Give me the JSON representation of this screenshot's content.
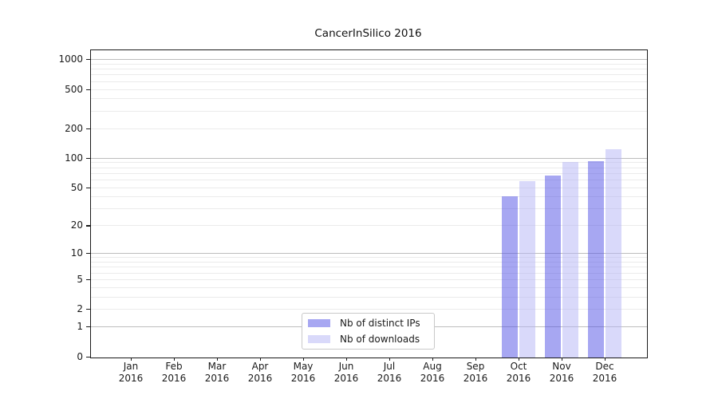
{
  "title": "CancerInSilico 2016",
  "chart_data": {
    "type": "bar",
    "title": "CancerInSilico 2016",
    "x_categories": [
      {
        "month": "Jan",
        "year": "2016"
      },
      {
        "month": "Feb",
        "year": "2016"
      },
      {
        "month": "Mar",
        "year": "2016"
      },
      {
        "month": "Apr",
        "year": "2016"
      },
      {
        "month": "May",
        "year": "2016"
      },
      {
        "month": "Jun",
        "year": "2016"
      },
      {
        "month": "Jul",
        "year": "2016"
      },
      {
        "month": "Aug",
        "year": "2016"
      },
      {
        "month": "Sep",
        "year": "2016"
      },
      {
        "month": "Oct",
        "year": "2016"
      },
      {
        "month": "Nov",
        "year": "2016"
      },
      {
        "month": "Dec",
        "year": "2016"
      }
    ],
    "series": [
      {
        "name": "Nb of distinct IPs",
        "color": "#5050e6",
        "values": [
          0,
          0,
          0,
          0,
          0,
          0,
          0,
          0,
          0,
          40,
          66,
          92
        ]
      },
      {
        "name": "Nb of downloads",
        "color": "#b4b4f5",
        "values": [
          0,
          0,
          0,
          0,
          0,
          0,
          0,
          0,
          0,
          58,
          90,
          122
        ]
      }
    ],
    "y_ticks": [
      0,
      1,
      2,
      5,
      10,
      20,
      50,
      100,
      200,
      500,
      1000
    ],
    "y_scale": "log1p",
    "ylim": [
      0,
      1230
    ],
    "grid": "horizontal, major and minor",
    "legend_position": "lower center inside axes"
  },
  "colors": {
    "ips_bar_base": "#5050e6",
    "downloads_bar_base": "#b4b4f5",
    "ips_bar_rendered": "#a7a7f2",
    "downloads_bar_rendered": "#d9d9fa",
    "major_gridline": "#bdbdbd",
    "minor_gridline": "#ebebeb",
    "axis_spine": "#1a1a1a",
    "legend_border": "#c9c9c9",
    "background": "#ffffff"
  }
}
